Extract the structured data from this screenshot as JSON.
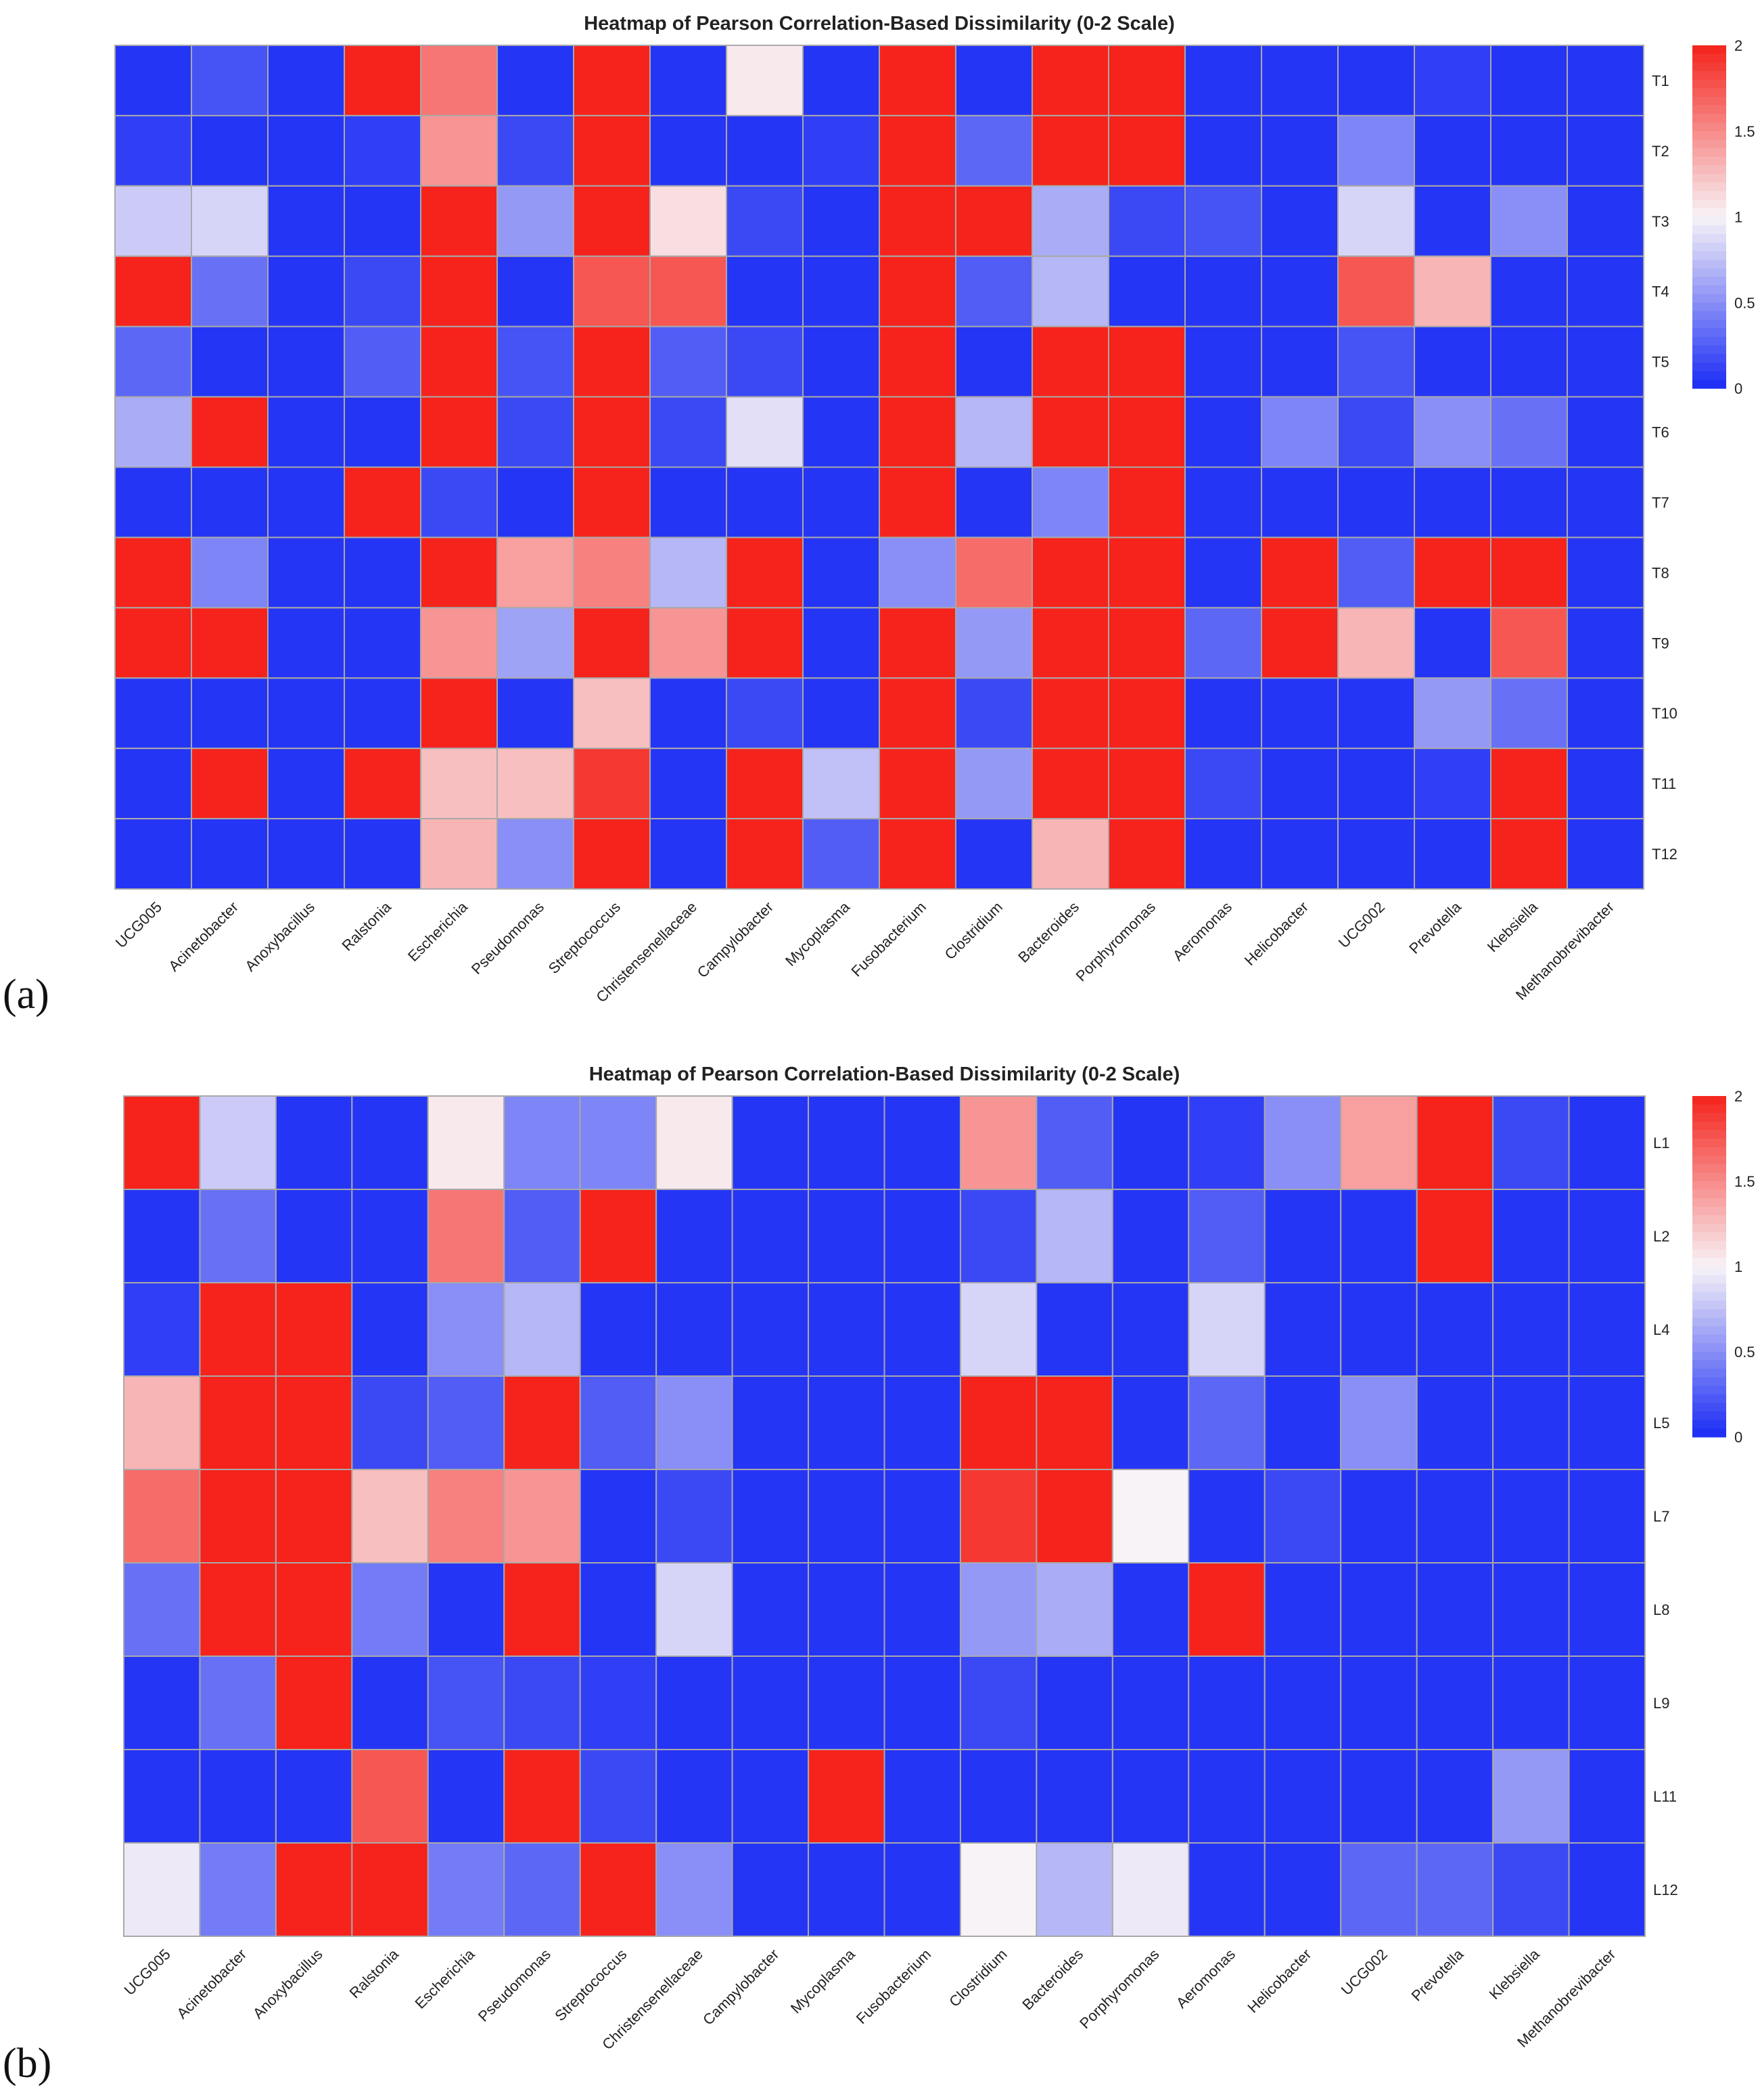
{
  "panels": [
    {
      "label": "(a)",
      "chart_data": {
        "type": "heatmap",
        "title": "Heatmap of Pearson Correlation-Based Dissimilarity (0-2 Scale)",
        "xlabel": "",
        "ylabel": "",
        "columns": [
          "UCG005",
          "Acinetobacter",
          "Anoxybacillus",
          "Ralstonia",
          "Escherichia",
          "Pseudomonas",
          "Streptococcus",
          "Christensenellaceae",
          "Campylobacter",
          "Mycoplasma",
          "Fusobacterium",
          "Clostridium",
          "Bacteroides",
          "Porphyromonas",
          "Aeromonas",
          "Helicobacter",
          "UCG002",
          "Prevotella",
          "Klebsiella",
          "Methanobrevibacter"
        ],
        "rows": [
          "T1",
          "T2",
          "T3",
          "T4",
          "T5",
          "T6",
          "T7",
          "T8",
          "T9",
          "T10",
          "T11",
          "T12"
        ],
        "values": [
          [
            0.05,
            0.2,
            0.05,
            2.0,
            1.6,
            0.05,
            2.0,
            0.05,
            1.05,
            0.05,
            2.0,
            0.05,
            2.0,
            2.0,
            0.05,
            0.05,
            0.05,
            0.1,
            0.05,
            0.05
          ],
          [
            0.1,
            0.05,
            0.05,
            0.1,
            1.45,
            0.15,
            2.0,
            0.05,
            0.05,
            0.1,
            2.0,
            0.3,
            2.0,
            2.0,
            0.05,
            0.05,
            0.45,
            0.05,
            0.05,
            0.05
          ],
          [
            0.8,
            0.85,
            0.05,
            0.05,
            2.0,
            0.55,
            2.0,
            1.1,
            0.15,
            0.05,
            2.0,
            2.0,
            0.65,
            0.15,
            0.2,
            0.05,
            0.85,
            0.05,
            0.5,
            0.05
          ],
          [
            2.0,
            0.35,
            0.05,
            0.15,
            2.0,
            0.05,
            1.75,
            1.75,
            0.05,
            0.05,
            2.0,
            0.25,
            0.7,
            0.05,
            0.05,
            0.05,
            1.75,
            1.3,
            0.05,
            0.05
          ],
          [
            0.3,
            0.05,
            0.05,
            0.25,
            2.0,
            0.2,
            2.0,
            0.25,
            0.15,
            0.05,
            2.0,
            0.05,
            2.0,
            2.0,
            0.05,
            0.05,
            0.2,
            0.05,
            0.05,
            0.05
          ],
          [
            0.65,
            2.0,
            0.05,
            0.05,
            2.0,
            0.15,
            2.0,
            0.15,
            0.9,
            0.05,
            2.0,
            0.7,
            2.0,
            2.0,
            0.05,
            0.45,
            0.15,
            0.5,
            0.35,
            0.05
          ],
          [
            0.05,
            0.05,
            0.05,
            2.0,
            0.15,
            0.05,
            2.0,
            0.05,
            0.05,
            0.05,
            2.0,
            0.05,
            0.45,
            2.0,
            0.05,
            0.05,
            0.05,
            0.05,
            0.05,
            0.05
          ],
          [
            2.0,
            0.45,
            0.05,
            0.05,
            2.0,
            1.4,
            1.55,
            0.7,
            2.0,
            0.05,
            0.5,
            1.65,
            2.0,
            2.0,
            0.05,
            2.0,
            0.25,
            2.0,
            2.0,
            0.05
          ],
          [
            2.0,
            2.0,
            0.05,
            0.05,
            1.45,
            0.6,
            2.0,
            1.45,
            2.0,
            0.05,
            2.0,
            0.55,
            2.0,
            2.0,
            0.3,
            2.0,
            1.3,
            0.05,
            1.75,
            0.05
          ],
          [
            0.05,
            0.05,
            0.05,
            0.05,
            2.0,
            0.05,
            1.25,
            0.05,
            0.15,
            0.05,
            2.0,
            0.15,
            2.0,
            2.0,
            0.05,
            0.05,
            0.05,
            0.55,
            0.35,
            0.05
          ],
          [
            0.05,
            2.0,
            0.05,
            2.0,
            1.25,
            1.25,
            1.9,
            0.05,
            2.0,
            0.75,
            2.0,
            0.55,
            2.0,
            2.0,
            0.15,
            0.05,
            0.05,
            0.1,
            2.0,
            0.05
          ],
          [
            0.05,
            0.05,
            0.05,
            0.05,
            1.3,
            0.5,
            2.0,
            0.05,
            2.0,
            0.25,
            2.0,
            0.05,
            1.3,
            2.0,
            0.05,
            0.05,
            0.05,
            0.05,
            2.0,
            0.05
          ]
        ],
        "colorbar": {
          "min": 0,
          "max": 2,
          "ticks": [
            "0",
            "0.5",
            "1",
            "1.5",
            "2"
          ]
        },
        "colors": {
          "low": "#1a2bf5",
          "mid": "#f8f3f7",
          "high": "#f5231c",
          "grid": "#a9a9a9"
        }
      }
    },
    {
      "label": "(b)",
      "chart_data": {
        "type": "heatmap",
        "title": "Heatmap of Pearson Correlation-Based Dissimilarity (0-2 Scale)",
        "xlabel": "",
        "ylabel": "",
        "columns": [
          "UCG005",
          "Acinetobacter",
          "Anoxybacillus",
          "Ralstonia",
          "Escherichia",
          "Pseudomonas",
          "Streptococcus",
          "Christensenellaceae",
          "Campylobacter",
          "Mycoplasma",
          "Fusobacterium",
          "Clostridium",
          "Bacteroides",
          "Porphyromonas",
          "Aeromonas",
          "Helicobacter",
          "UCG002",
          "Prevotella",
          "Klebsiella",
          "Methanobrevibacter"
        ],
        "rows": [
          "L1",
          "L2",
          "L4",
          "L5",
          "L7",
          "L8",
          "L9",
          "L11",
          "L12"
        ],
        "values": [
          [
            2.0,
            0.8,
            0.05,
            0.05,
            1.05,
            0.45,
            0.45,
            1.05,
            0.05,
            0.05,
            0.05,
            1.45,
            0.25,
            0.05,
            0.1,
            0.5,
            1.4,
            2.0,
            0.15,
            0.05
          ],
          [
            0.05,
            0.35,
            0.05,
            0.05,
            1.6,
            0.25,
            2.0,
            0.05,
            0.05,
            0.05,
            0.05,
            0.15,
            0.7,
            0.05,
            0.25,
            0.05,
            0.05,
            2.0,
            0.05,
            0.05
          ],
          [
            0.1,
            2.0,
            2.0,
            0.05,
            0.5,
            0.7,
            0.05,
            0.05,
            0.05,
            0.05,
            0.05,
            0.85,
            0.05,
            0.05,
            0.85,
            0.05,
            0.05,
            0.05,
            0.05,
            0.05
          ],
          [
            1.3,
            2.0,
            2.0,
            0.15,
            0.25,
            2.0,
            0.25,
            0.5,
            0.05,
            0.05,
            0.05,
            2.0,
            2.0,
            0.05,
            0.3,
            0.05,
            0.5,
            0.05,
            0.05,
            0.05
          ],
          [
            1.65,
            2.0,
            2.0,
            1.25,
            1.55,
            1.45,
            0.05,
            0.15,
            0.05,
            0.05,
            0.05,
            1.9,
            2.0,
            1.0,
            0.05,
            0.15,
            0.05,
            0.05,
            0.05,
            0.05
          ],
          [
            0.35,
            2.0,
            2.0,
            0.4,
            0.05,
            2.0,
            0.05,
            0.85,
            0.05,
            0.05,
            0.05,
            0.55,
            0.65,
            0.05,
            2.0,
            0.05,
            0.05,
            0.05,
            0.05,
            0.05
          ],
          [
            0.05,
            0.35,
            2.0,
            0.05,
            0.2,
            0.15,
            0.1,
            0.05,
            0.05,
            0.05,
            0.05,
            0.15,
            0.05,
            0.05,
            0.05,
            0.05,
            0.05,
            0.05,
            0.05,
            0.05
          ],
          [
            0.05,
            0.05,
            0.05,
            1.75,
            0.05,
            2.0,
            0.15,
            0.05,
            0.05,
            2.0,
            0.05,
            0.05,
            0.05,
            0.05,
            0.05,
            0.05,
            0.05,
            0.05,
            0.55,
            0.05
          ],
          [
            0.95,
            0.4,
            2.0,
            2.0,
            0.4,
            0.3,
            2.0,
            0.5,
            0.05,
            0.05,
            0.05,
            1.0,
            0.7,
            0.95,
            0.05,
            0.05,
            0.3,
            0.3,
            0.15,
            0.05
          ]
        ],
        "colorbar": {
          "min": 0,
          "max": 2,
          "ticks": [
            "0",
            "0.5",
            "1",
            "1.5",
            "2"
          ]
        },
        "colors": {
          "low": "#1a2bf5",
          "mid": "#f8f3f7",
          "high": "#f5231c",
          "grid": "#a9a9a9"
        }
      }
    }
  ]
}
